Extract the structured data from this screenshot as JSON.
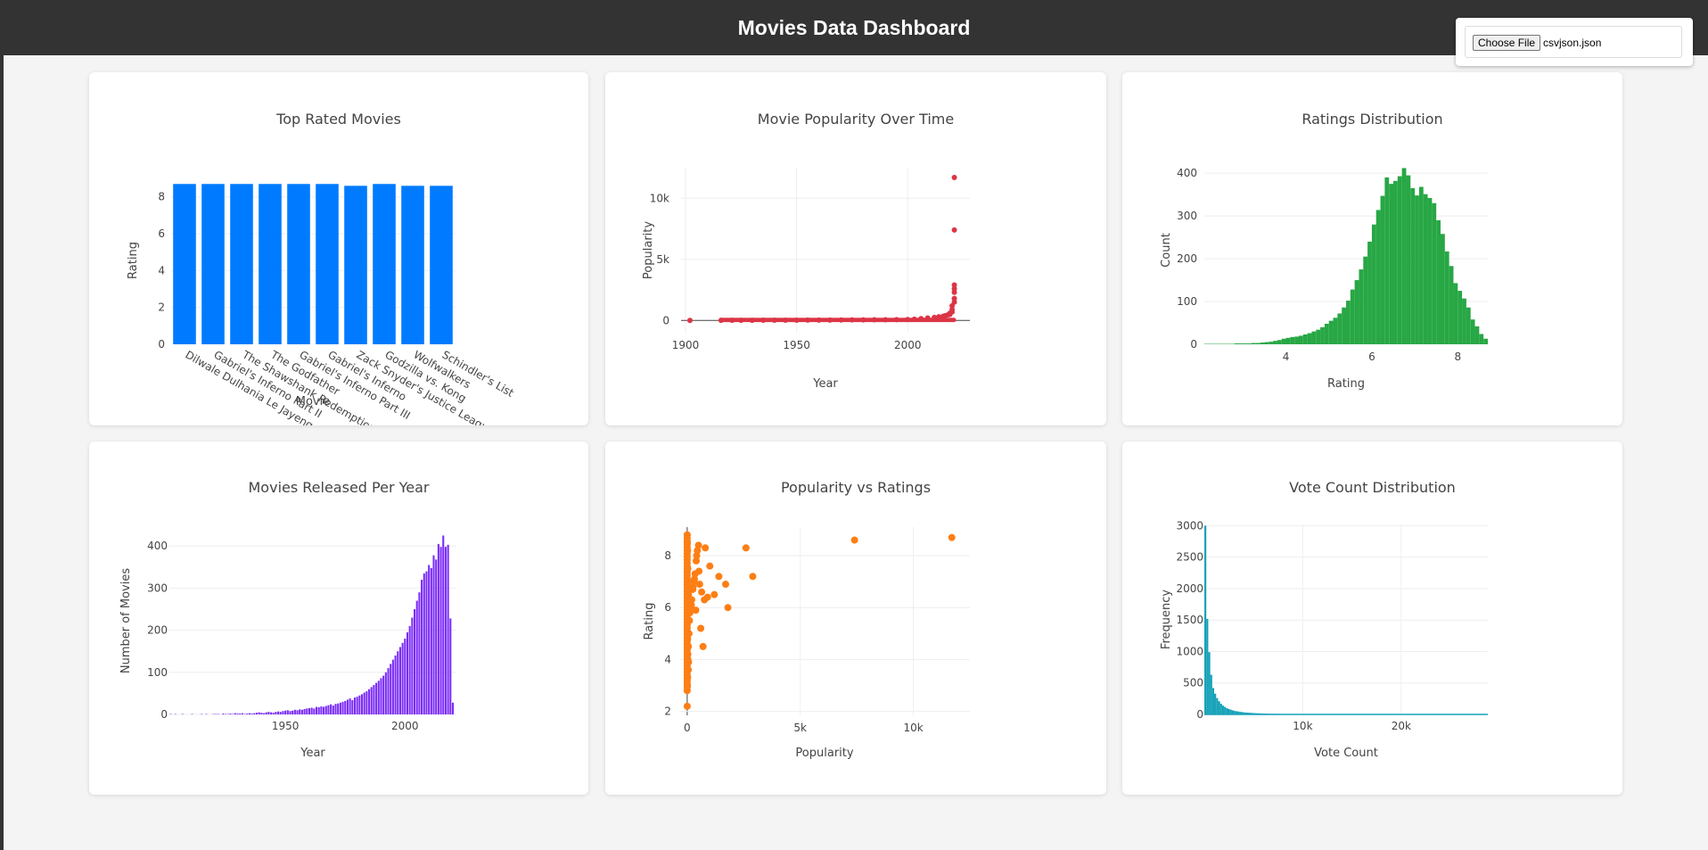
{
  "header": {
    "title": "Movies Data Dashboard"
  },
  "file_input": {
    "button_label": "Choose File",
    "file_name": "csvjson.json"
  },
  "chart_data": [
    {
      "id": "top-rated",
      "type": "bar",
      "title": "Top Rated Movies",
      "xlabel": "Movie",
      "ylabel": "Rating",
      "categories": [
        "Dilwale Dulhania Le Jayenge",
        "Gabriel's Inferno Part II",
        "The Shawshank Redemption",
        "The Godfather",
        "Gabriel's Inferno Part III",
        "Gabriel's Inferno",
        "Zack Snyder's Justice League",
        "Godzilla vs. Kong",
        "Wolfwalkers",
        "Schindler's List"
      ],
      "values": [
        8.7,
        8.7,
        8.7,
        8.7,
        8.7,
        8.7,
        8.6,
        8.7,
        8.6,
        8.6
      ],
      "yticks": [
        0,
        2,
        4,
        6,
        8
      ],
      "ylim": [
        0,
        9.1
      ],
      "color": "#007bff"
    },
    {
      "id": "popularity-time",
      "type": "scatter",
      "title": "Movie Popularity Over Time",
      "xlabel": "Year",
      "ylabel": "Popularity",
      "xticks": [
        1900,
        1950,
        2000
      ],
      "yticks": [
        0,
        5000,
        10000
      ],
      "ytick_labels": [
        "0",
        "5k",
        "10k"
      ],
      "xlim": [
        1898,
        2028
      ],
      "ylim": [
        -1000,
        12500
      ],
      "x": [
        1902,
        1916,
        1921,
        1925,
        1930,
        1935,
        1940,
        1945,
        1950,
        1955,
        1960,
        1965,
        1970,
        1975,
        1980,
        1985,
        1990,
        1995,
        2000,
        2003,
        2006,
        2009,
        2012,
        2014,
        2016,
        2017,
        2018,
        2019,
        2019,
        2020,
        2020,
        2020,
        2021,
        2021,
        2021,
        2021,
        2021,
        2021,
        2021
      ],
      "y": [
        5,
        10,
        8,
        12,
        15,
        18,
        20,
        22,
        25,
        28,
        30,
        35,
        40,
        45,
        50,
        55,
        60,
        70,
        80,
        100,
        150,
        200,
        250,
        300,
        350,
        400,
        450,
        500,
        600,
        700,
        900,
        1200,
        1500,
        1800,
        2300,
        2600,
        2900,
        7400,
        11700
      ],
      "color": "#dc3545"
    },
    {
      "id": "ratings-dist",
      "type": "bar",
      "title": "Ratings Distribution",
      "xlabel": "Rating",
      "ylabel": "Count",
      "bin_start": 2.1,
      "bin_width": 0.1,
      "values": [
        1,
        1,
        1,
        1,
        1,
        1,
        1,
        2,
        2,
        2,
        2,
        3,
        3,
        4,
        5,
        6,
        8,
        10,
        13,
        15,
        17,
        18,
        20,
        23,
        26,
        30,
        34,
        40,
        48,
        55,
        62,
        72,
        86,
        102,
        128,
        150,
        175,
        205,
        240,
        280,
        314,
        347,
        390,
        375,
        382,
        393,
        412,
        395,
        365,
        348,
        368,
        351,
        342,
        330,
        290,
        258,
        217,
        183,
        143,
        125,
        107,
        86,
        58,
        42,
        24,
        13
      ],
      "xticks": [
        4,
        6,
        8
      ],
      "yticks": [
        0,
        100,
        200,
        300,
        400
      ],
      "xlim": [
        2.1,
        8.7
      ],
      "ylim": [
        0,
        440
      ],
      "color": "#28a745"
    },
    {
      "id": "released-per-year",
      "type": "bar",
      "title": "Movies Released Per Year",
      "xlabel": "Year",
      "ylabel": "Number of Movies",
      "x_start": 1902,
      "values": [
        1,
        0,
        1,
        0,
        0,
        1,
        0,
        0,
        0,
        1,
        0,
        0,
        0,
        1,
        0,
        1,
        0,
        0,
        1,
        1,
        1,
        0,
        2,
        1,
        1,
        2,
        1,
        3,
        2,
        2,
        3,
        1,
        2,
        3,
        2,
        3,
        4,
        5,
        4,
        3,
        5,
        6,
        5,
        4,
        6,
        7,
        6,
        8,
        9,
        10,
        8,
        9,
        11,
        10,
        12,
        11,
        13,
        14,
        15,
        16,
        14,
        18,
        17,
        19,
        18,
        20,
        22,
        24,
        21,
        25,
        26,
        28,
        30,
        32,
        35,
        38,
        34,
        40,
        42,
        45,
        48,
        52,
        55,
        60,
        65,
        70,
        75,
        80,
        86,
        92,
        100,
        110,
        120,
        130,
        140,
        150,
        160,
        170,
        180,
        195,
        210,
        230,
        250,
        270,
        290,
        320,
        335,
        340,
        355,
        348,
        378,
        368,
        405,
        398,
        425,
        398,
        403,
        228,
        28
      ],
      "xticks": [
        1950,
        2000
      ],
      "yticks": [
        0,
        100,
        200,
        300,
        400
      ],
      "xlim": [
        1902,
        2021
      ],
      "ylim": [
        0,
        445
      ],
      "color": "#7b2cf7"
    },
    {
      "id": "popularity-ratings",
      "type": "scatter",
      "title": "Popularity vs Ratings",
      "xlabel": "Popularity",
      "ylabel": "Rating",
      "xticks": [
        0,
        5000,
        10000
      ],
      "xtick_labels": [
        "0",
        "5k",
        "10k"
      ],
      "yticks": [
        2,
        4,
        6,
        8
      ],
      "xlim": [
        -350,
        12500
      ],
      "ylim": [
        1.85,
        9.1
      ],
      "x": [
        0,
        10,
        20,
        30,
        50,
        80,
        100,
        150,
        200,
        250,
        300,
        350,
        400,
        450,
        500,
        550,
        600,
        700,
        800,
        900,
        1000,
        1200,
        1400,
        1700,
        1800,
        2600,
        2900,
        7400,
        11700,
        0,
        5,
        15,
        25,
        40,
        60,
        120,
        180,
        260,
        320,
        380,
        420,
        520,
        640,
        760,
        50,
        60,
        30,
        20
      ],
      "y": [
        2.2,
        3.0,
        3.3,
        4.0,
        4.5,
        5.0,
        5.5,
        6.0,
        6.3,
        6.7,
        7.0,
        7.3,
        7.8,
        8.2,
        8.4,
        6.9,
        5.2,
        4.5,
        8.3,
        6.4,
        7.6,
        6.5,
        7.2,
        6.9,
        6.0,
        8.3,
        7.2,
        8.6,
        8.7,
        8.8,
        8.5,
        8.2,
        7.5,
        7.0,
        6.5,
        5.8,
        6.1,
        6.8,
        7.1,
        5.9,
        8.0,
        7.4,
        6.6,
        6.3,
        3.6,
        3.9,
        4.2,
        4.8
      ],
      "color": "#fd7e14"
    },
    {
      "id": "vote-count",
      "type": "bar",
      "title": "Vote Count Distribution",
      "xlabel": "Vote Count",
      "ylabel": "Frequency",
      "bin_start": 0,
      "bin_width": 200,
      "values": [
        3000,
        1520,
        990,
        630,
        420,
        330,
        260,
        210,
        170,
        140,
        120,
        100,
        85,
        75,
        65,
        55,
        50,
        45,
        40,
        36,
        32,
        29,
        27,
        25,
        23,
        21,
        19,
        18,
        17,
        15,
        14,
        13,
        12,
        11,
        10,
        10,
        9,
        9,
        8,
        8,
        7,
        7,
        6,
        6,
        6,
        5,
        5,
        5,
        4,
        4,
        4,
        4,
        3,
        3,
        3,
        3,
        3,
        3,
        2,
        2,
        2,
        2,
        2,
        2,
        2,
        2,
        2,
        1,
        1,
        1,
        1,
        1,
        1,
        1,
        1,
        1,
        1,
        1,
        1,
        1,
        1,
        1,
        1,
        1,
        1,
        1,
        1,
        1,
        1,
        1,
        1,
        1,
        1,
        1,
        1,
        1,
        1,
        1,
        1,
        1,
        1,
        1,
        1,
        1,
        1,
        1,
        1,
        1,
        1,
        1,
        1,
        1,
        1,
        1,
        1,
        1,
        1,
        1,
        1,
        1,
        1,
        1,
        1,
        1,
        1,
        1,
        1,
        1,
        1,
        1,
        1,
        1,
        1,
        1,
        1,
        1,
        1,
        1
      ],
      "xticks": [
        10000,
        20000
      ],
      "xtick_labels": [
        "10k",
        "20k"
      ],
      "yticks": [
        0,
        500,
        1000,
        1500,
        2000,
        2500,
        3000
      ],
      "xlim": [
        0,
        28800
      ],
      "ylim": [
        0,
        3020
      ],
      "color": "#17a2b8"
    }
  ]
}
